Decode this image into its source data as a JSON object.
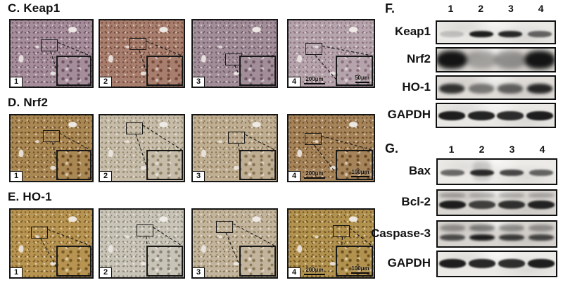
{
  "figure": {
    "ihc_rows": [
      {
        "id": "C",
        "title": "C. Keap1",
        "panels": [
          {
            "number": "1",
            "base": "#a58e9a",
            "dot": "#6e5265",
            "rect": [
              0.36,
              0.28
            ]
          },
          {
            "number": "2",
            "base": "#a87f6e",
            "dot": "#74483a",
            "rect": [
              0.34,
              0.26
            ]
          },
          {
            "number": "3",
            "base": "#a28e98",
            "dot": "#6f5766",
            "rect": [
              0.37,
              0.48
            ]
          },
          {
            "number": "4",
            "base": "#b6a4ac",
            "dot": "#8a6f7c",
            "rect": [
              0.19,
              0.33
            ],
            "scale_main": "200μm",
            "scale_inset": "50μm"
          }
        ]
      },
      {
        "id": "D",
        "title": "D. Nrf2",
        "panels": [
          {
            "number": "1",
            "base": "#aa8853",
            "dot": "#6e4b24",
            "rect": [
              0.38,
              0.22
            ]
          },
          {
            "number": "2",
            "base": "#c6bca9",
            "dot": "#8f8468",
            "rect": [
              0.3,
              0.1
            ]
          },
          {
            "number": "3",
            "base": "#bfae92",
            "dot": "#887353",
            "rect": [
              0.41,
              0.24
            ]
          },
          {
            "number": "4",
            "base": "#a6845a",
            "dot": "#6d4a26",
            "rect": [
              0.18,
              0.26
            ],
            "scale_main": "200μm",
            "scale_inset": "100μm"
          }
        ]
      },
      {
        "id": "E",
        "title": "E. HO-1",
        "panels": [
          {
            "number": "1",
            "base": "#b79451",
            "dot": "#7a5a22",
            "rect": [
              0.24,
              0.24
            ]
          },
          {
            "number": "2",
            "base": "#c9c4b8",
            "dot": "#8a8574",
            "rect": [
              0.42,
              0.21
            ]
          },
          {
            "number": "3",
            "base": "#c3b59d",
            "dot": "#8a7857",
            "rect": [
              0.27,
              0.16
            ]
          },
          {
            "number": "4",
            "base": "#b1924e",
            "dot": "#6e4f1e",
            "rect": [
              0.5,
              0.22
            ],
            "scale_main": "200μm",
            "scale_inset": "100μm"
          }
        ]
      }
    ],
    "blot_panels": [
      {
        "id": "F",
        "label": "F.",
        "lanes": [
          "1",
          "2",
          "3",
          "4"
        ],
        "rows": [
          {
            "protein": "Keap1",
            "style": "sharp",
            "bg": "#eae8e5",
            "intensities": [
              0.18,
              0.95,
              0.9,
              0.62
            ]
          },
          {
            "protein": "Nrf2",
            "style": "blob",
            "bg": "#dbd8d4",
            "intensities": [
              1.0,
              0.28,
              0.36,
              1.0
            ]
          },
          {
            "protein": "HO-1",
            "style": "fuzzy",
            "bg": "#e0ddd9",
            "intensities": [
              0.85,
              0.5,
              0.62,
              0.9
            ]
          },
          {
            "protein": "GAPDH",
            "style": "thick",
            "bg": "#eae8e5",
            "intensities": [
              0.95,
              0.92,
              0.88,
              0.95
            ]
          }
        ]
      },
      {
        "id": "G",
        "label": "G.",
        "lanes": [
          "1",
          "2",
          "3",
          "4"
        ],
        "rows": [
          {
            "protein": "Bax",
            "style": "sharp",
            "bg": "#edebe8",
            "intensities": [
              0.6,
              0.88,
              0.75,
              0.62
            ],
            "smear_lane": 1
          },
          {
            "protein": "Bcl-2",
            "style": "double",
            "bg": "#dad7d3",
            "intensities": [
              0.95,
              0.78,
              0.85,
              0.92
            ]
          },
          {
            "protein": "Caspase-3",
            "style": "doublefuzzy",
            "bg": "#d8d5d1",
            "intensities": [
              0.72,
              0.95,
              0.8,
              0.75
            ]
          },
          {
            "protein": "GAPDH",
            "style": "thick",
            "bg": "#eceae7",
            "intensities": [
              0.95,
              0.9,
              0.87,
              0.95
            ]
          }
        ]
      }
    ],
    "colors": {
      "ink": "#121212",
      "panel_border": "#151515"
    }
  }
}
